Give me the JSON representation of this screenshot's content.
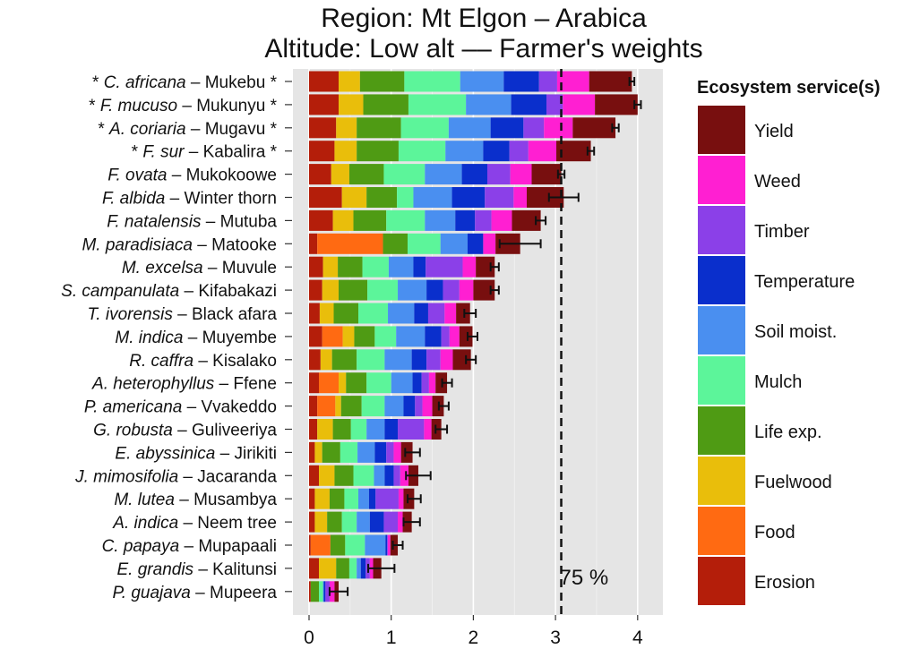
{
  "chart_data": {
    "type": "bar",
    "orientation": "horizontal",
    "stacked": true,
    "title": "Region: Mt Elgon – Arabica",
    "subtitle": "Altitude: Low alt –– Farmer's weights",
    "xlabel": "",
    "ylabel": "",
    "xlim": [
      0,
      4.3
    ],
    "xticks": [
      0,
      1,
      2,
      3,
      4
    ],
    "grid": true,
    "legend_title": "Ecosystem service(s)",
    "legend_position": "right",
    "reference_line": {
      "value": 3.07,
      "label": "75 %"
    },
    "categories": [
      {
        "italic": "C. africana",
        "rest": " – Mukebu",
        "prefix": "* ",
        "suffix": " *"
      },
      {
        "italic": "F. mucuso",
        "rest": " – Mukunyu",
        "prefix": "* ",
        "suffix": " *"
      },
      {
        "italic": "A. coriaria",
        "rest": " – Mugavu",
        "prefix": "* ",
        "suffix": " *"
      },
      {
        "italic": "F. sur",
        "rest": " – Kabalira",
        "prefix": "* ",
        "suffix": " *"
      },
      {
        "italic": "F. ovata",
        "rest": " – Mukokoowe",
        "prefix": "",
        "suffix": ""
      },
      {
        "italic": "F. albida",
        "rest": " – Winter thorn",
        "prefix": "",
        "suffix": ""
      },
      {
        "italic": "F. natalensis",
        "rest": " – Mutuba",
        "prefix": "",
        "suffix": ""
      },
      {
        "italic": "M. paradisiaca",
        "rest": " – Matooke",
        "prefix": "",
        "suffix": ""
      },
      {
        "italic": "M. excelsa",
        "rest": " – Muvule",
        "prefix": "",
        "suffix": ""
      },
      {
        "italic": "S. campanulata",
        "rest": " – Kifabakazi",
        "prefix": "",
        "suffix": ""
      },
      {
        "italic": "T. ivorensis",
        "rest": " – Black afara",
        "prefix": "",
        "suffix": ""
      },
      {
        "italic": "M. indica",
        "rest": " – Muyembe",
        "prefix": "",
        "suffix": ""
      },
      {
        "italic": "R. caffra",
        "rest": " – Kisalako",
        "prefix": "",
        "suffix": ""
      },
      {
        "italic": "A. heterophyllus",
        "rest": " – Ffene",
        "prefix": "",
        "suffix": ""
      },
      {
        "italic": "P. americana",
        "rest": " – Vvakeddo",
        "prefix": "",
        "suffix": ""
      },
      {
        "italic": "G. robusta",
        "rest": " – Guliveeriya",
        "prefix": "",
        "suffix": ""
      },
      {
        "italic": "E. abyssinica",
        "rest": " – Jirikiti",
        "prefix": "",
        "suffix": ""
      },
      {
        "italic": "J. mimosifolia",
        "rest": " – Jacaranda",
        "prefix": "",
        "suffix": ""
      },
      {
        "italic": "M. lutea",
        "rest": " – Musambya",
        "prefix": "",
        "suffix": ""
      },
      {
        "italic": "A. indica",
        "rest": " – Neem tree",
        "prefix": "",
        "suffix": ""
      },
      {
        "italic": "C. papaya",
        "rest": " – Mupapaali",
        "prefix": "",
        "suffix": ""
      },
      {
        "italic": "E. grandis",
        "rest": " – Kalitunsi",
        "prefix": "",
        "suffix": ""
      },
      {
        "italic": "P. guajava",
        "rest": " – Mupeera",
        "prefix": "",
        "suffix": ""
      }
    ],
    "series": [
      {
        "name": "Erosion",
        "color": "#B41E0A",
        "values": [
          0.36,
          0.36,
          0.33,
          0.31,
          0.27,
          0.4,
          0.29,
          0.1,
          0.17,
          0.16,
          0.13,
          0.16,
          0.14,
          0.12,
          0.1,
          0.1,
          0.07,
          0.12,
          0.07,
          0.07,
          0.02,
          0.12,
          0.02
        ]
      },
      {
        "name": "Food",
        "color": "#FF6A12",
        "values": [
          0,
          0,
          0,
          0,
          0,
          0,
          0,
          0.8,
          0,
          0,
          0,
          0.25,
          0,
          0.24,
          0.22,
          0,
          0,
          0,
          0,
          0,
          0.24,
          0,
          0
        ]
      },
      {
        "name": "Fuelwood",
        "color": "#E9BE0B",
        "values": [
          0.26,
          0.3,
          0.25,
          0.27,
          0.22,
          0.3,
          0.25,
          0,
          0.18,
          0.2,
          0.17,
          0.14,
          0.14,
          0.09,
          0.07,
          0.19,
          0.09,
          0.19,
          0.18,
          0.15,
          0,
          0.21,
          0
        ]
      },
      {
        "name": "Life exp.",
        "color": "#4F9B14",
        "values": [
          0.54,
          0.55,
          0.54,
          0.51,
          0.42,
          0.37,
          0.4,
          0.3,
          0.3,
          0.35,
          0.3,
          0.25,
          0.3,
          0.25,
          0.25,
          0.22,
          0.22,
          0.23,
          0.18,
          0.18,
          0.18,
          0.16,
          0.1
        ]
      },
      {
        "name": "Mulch",
        "color": "#5CF59A",
        "values": [
          0.68,
          0.7,
          0.58,
          0.57,
          0.5,
          0.2,
          0.47,
          0.4,
          0.32,
          0.37,
          0.36,
          0.26,
          0.34,
          0.3,
          0.28,
          0.19,
          0.21,
          0.25,
          0.17,
          0.18,
          0.24,
          0.09,
          0.05
        ]
      },
      {
        "name": "Soil moist.",
        "color": "#4A8FF0",
        "values": [
          0.53,
          0.55,
          0.51,
          0.46,
          0.45,
          0.47,
          0.37,
          0.33,
          0.3,
          0.35,
          0.32,
          0.35,
          0.33,
          0.26,
          0.23,
          0.22,
          0.21,
          0.13,
          0.13,
          0.16,
          0.25,
          0.05,
          0.01
        ]
      },
      {
        "name": "Temperature",
        "color": "#0A2FCC",
        "values": [
          0.43,
          0.43,
          0.4,
          0.32,
          0.31,
          0.4,
          0.24,
          0.19,
          0.15,
          0.2,
          0.17,
          0.2,
          0.18,
          0.11,
          0.14,
          0.16,
          0.14,
          0.11,
          0.08,
          0.17,
          0.02,
          0.06,
          0.02
        ]
      },
      {
        "name": "Timber",
        "color": "#8B40E8",
        "values": [
          0.22,
          0.2,
          0.25,
          0.23,
          0.28,
          0.35,
          0.2,
          0,
          0.45,
          0.2,
          0.2,
          0.1,
          0.17,
          0.09,
          0.09,
          0.32,
          0.09,
          0.08,
          0.28,
          0.17,
          0.01,
          0.05,
          0.05
        ]
      },
      {
        "name": "Weed",
        "color": "#FF1FD2",
        "values": [
          0.39,
          0.39,
          0.35,
          0.34,
          0.26,
          0.16,
          0.25,
          0.15,
          0.16,
          0.17,
          0.14,
          0.12,
          0.15,
          0.08,
          0.12,
          0.09,
          0.09,
          0.1,
          0.06,
          0.06,
          0.03,
          0.04,
          0.06
        ]
      },
      {
        "name": "Yield",
        "color": "#780F0F",
        "values": [
          0.52,
          0.52,
          0.52,
          0.42,
          0.36,
          0.45,
          0.35,
          0.3,
          0.23,
          0.26,
          0.17,
          0.16,
          0.22,
          0.14,
          0.14,
          0.12,
          0.14,
          0.12,
          0.13,
          0.11,
          0.09,
          0.1,
          0.05
        ]
      }
    ],
    "error_bars": [
      0.03,
      0.04,
      0.04,
      0.04,
      0.04,
      0.18,
      0.06,
      0.25,
      0.05,
      0.05,
      0.07,
      0.06,
      0.06,
      0.06,
      0.06,
      0.07,
      0.09,
      0.15,
      0.08,
      0.1,
      0.06,
      0.16,
      0.11
    ],
    "legend_order": [
      "Yield",
      "Weed",
      "Timber",
      "Temperature",
      "Soil moist.",
      "Mulch",
      "Life exp.",
      "Fuelwood",
      "Food",
      "Erosion"
    ]
  }
}
